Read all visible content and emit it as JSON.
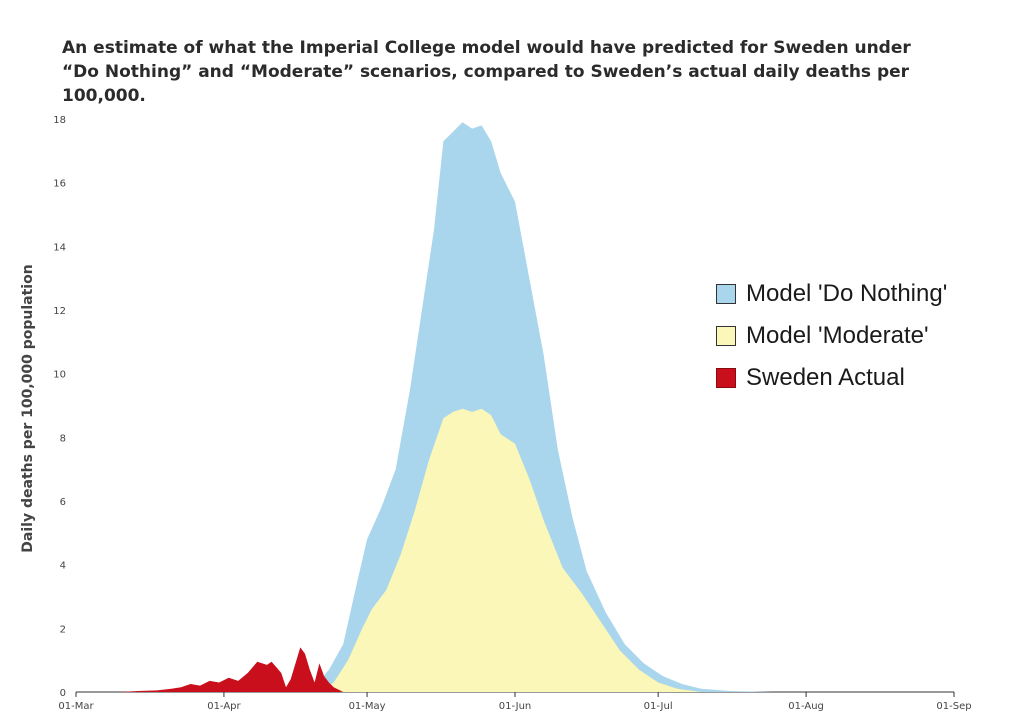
{
  "chart_data": {
    "type": "area",
    "title_lines": [
      "An estimate of what the Imperial College model would have predicted for Sweden under",
      "“Do Nothing” and “Moderate” scenarios, compared to Sweden’s actual daily deaths per 100,000."
    ],
    "ylabel": "Daily deaths per 100,000 population",
    "xlabel": "",
    "ylim": [
      0,
      18
    ],
    "yticks": [
      0,
      2,
      4,
      6,
      8,
      10,
      12,
      14,
      16,
      18
    ],
    "xticks": [
      "01-Mar",
      "01-Apr",
      "01-May",
      "01-Jun",
      "01-Jul",
      "01-Aug",
      "01-Sep"
    ],
    "legend_position": "right",
    "series": [
      {
        "name": "Model 'Do Nothing'",
        "color": "#a9d6ec",
        "points": [
          [
            "2020-04-19",
            0
          ],
          [
            "2020-04-23",
            0.7
          ],
          [
            "2020-04-26",
            1.5
          ],
          [
            "2020-04-29",
            3.5
          ],
          [
            "2020-05-01",
            4.8
          ],
          [
            "2020-05-04",
            5.8
          ],
          [
            "2020-05-07",
            7.0
          ],
          [
            "2020-05-10",
            9.5
          ],
          [
            "2020-05-13",
            12.5
          ],
          [
            "2020-05-15",
            14.5
          ],
          [
            "2020-05-17",
            17.3
          ],
          [
            "2020-05-19",
            17.6
          ],
          [
            "2020-05-21",
            17.9
          ],
          [
            "2020-05-23",
            17.7
          ],
          [
            "2020-05-25",
            17.8
          ],
          [
            "2020-05-27",
            17.3
          ],
          [
            "2020-05-29",
            16.3
          ],
          [
            "2020-06-01",
            15.4
          ],
          [
            "2020-06-04",
            13.0
          ],
          [
            "2020-06-07",
            10.6
          ],
          [
            "2020-06-10",
            7.6
          ],
          [
            "2020-06-13",
            5.5
          ],
          [
            "2020-06-16",
            3.8
          ],
          [
            "2020-06-20",
            2.5
          ],
          [
            "2020-06-24",
            1.5
          ],
          [
            "2020-06-28",
            0.9
          ],
          [
            "2020-07-02",
            0.5
          ],
          [
            "2020-07-06",
            0.25
          ],
          [
            "2020-07-10",
            0.1
          ],
          [
            "2020-07-16",
            0.03
          ],
          [
            "2020-07-25",
            0
          ]
        ]
      },
      {
        "name": "Model 'Moderate'",
        "color": "#fbf7b8",
        "points": [
          [
            "2020-04-21",
            0
          ],
          [
            "2020-04-24",
            0.3
          ],
          [
            "2020-04-27",
            1.0
          ],
          [
            "2020-04-30",
            2.0
          ],
          [
            "2020-05-02",
            2.6
          ],
          [
            "2020-05-05",
            3.2
          ],
          [
            "2020-05-08",
            4.3
          ],
          [
            "2020-05-11",
            5.7
          ],
          [
            "2020-05-14",
            7.3
          ],
          [
            "2020-05-17",
            8.6
          ],
          [
            "2020-05-19",
            8.8
          ],
          [
            "2020-05-21",
            8.9
          ],
          [
            "2020-05-23",
            8.8
          ],
          [
            "2020-05-25",
            8.9
          ],
          [
            "2020-05-27",
            8.7
          ],
          [
            "2020-05-29",
            8.1
          ],
          [
            "2020-06-01",
            7.8
          ],
          [
            "2020-06-04",
            6.7
          ],
          [
            "2020-06-07",
            5.4
          ],
          [
            "2020-06-11",
            3.9
          ],
          [
            "2020-06-15",
            3.1
          ],
          [
            "2020-06-19",
            2.2
          ],
          [
            "2020-06-23",
            1.3
          ],
          [
            "2020-06-27",
            0.7
          ],
          [
            "2020-07-01",
            0.3
          ],
          [
            "2020-07-05",
            0.1
          ],
          [
            "2020-07-10",
            0
          ]
        ]
      },
      {
        "name": "Sweden Actual",
        "color": "#c80f1b",
        "points": [
          [
            "2020-03-10",
            0
          ],
          [
            "2020-03-14",
            0.03
          ],
          [
            "2020-03-18",
            0.05
          ],
          [
            "2020-03-21",
            0.1
          ],
          [
            "2020-03-23",
            0.15
          ],
          [
            "2020-03-25",
            0.25
          ],
          [
            "2020-03-27",
            0.2
          ],
          [
            "2020-03-29",
            0.35
          ],
          [
            "2020-03-31",
            0.3
          ],
          [
            "2020-04-02",
            0.45
          ],
          [
            "2020-04-04",
            0.35
          ],
          [
            "2020-04-06",
            0.6
          ],
          [
            "2020-04-08",
            0.95
          ],
          [
            "2020-04-10",
            0.85
          ],
          [
            "2020-04-11",
            0.95
          ],
          [
            "2020-04-13",
            0.6
          ],
          [
            "2020-04-14",
            0.15
          ],
          [
            "2020-04-15",
            0.4
          ],
          [
            "2020-04-17",
            1.4
          ],
          [
            "2020-04-18",
            1.2
          ],
          [
            "2020-04-19",
            0.7
          ],
          [
            "2020-04-20",
            0.3
          ],
          [
            "2020-04-21",
            0.9
          ],
          [
            "2020-04-22",
            0.5
          ],
          [
            "2020-04-23",
            0.3
          ],
          [
            "2020-04-24",
            0.15
          ],
          [
            "2020-04-26",
            0
          ]
        ]
      }
    ]
  }
}
